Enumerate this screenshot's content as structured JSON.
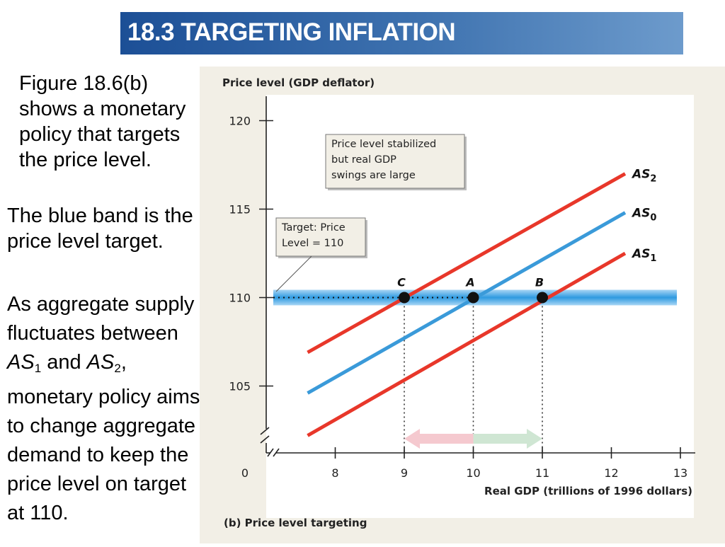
{
  "slide": {
    "title": "18.3 TARGETING INFLATION",
    "para1": "Figure 18.6(b) shows a monetary policy that targets the price level.",
    "para2": "The blue band is the price level target.",
    "para3": {
      "t1": "As aggregate supply fluctuates between ",
      "as1": "AS",
      "as1_sub": "1",
      "t2": " and ",
      "as2": "AS",
      "as2_sub": "2",
      "t3": ", monetary policy aims to change aggregate demand to keep the price level on target at 110."
    }
  },
  "chart_data": {
    "type": "line",
    "ylabel": "Price level (GDP deflator)",
    "xlabel": "Real GDP (trillions of 1996 dollars)",
    "caption": "(b) Price level targeting",
    "y_ticks": [
      105,
      110,
      115,
      120
    ],
    "x_ticks": [
      8,
      9,
      10,
      11,
      12,
      13
    ],
    "origin_label": "0",
    "xlim": [
      7,
      13
    ],
    "ylim": [
      102,
      120
    ],
    "target_price_level": 110,
    "series": [
      {
        "name": "AS",
        "sub": "2",
        "color": "#e8372a",
        "x": [
          7.6,
          12.2
        ],
        "y": [
          106.9,
          117.0
        ]
      },
      {
        "name": "AS",
        "sub": "0",
        "color": "#3a9ad9",
        "x": [
          7.6,
          12.2
        ],
        "y": [
          104.6,
          114.8
        ]
      },
      {
        "name": "AS",
        "sub": "1",
        "color": "#e8372a",
        "x": [
          7.6,
          12.2
        ],
        "y": [
          102.2,
          112.5
        ]
      }
    ],
    "points": [
      {
        "label": "C",
        "x": 9,
        "y": 110
      },
      {
        "label": "A",
        "x": 10,
        "y": 110
      },
      {
        "label": "B",
        "x": 11,
        "y": 110
      }
    ],
    "arrows": [
      {
        "from": 10,
        "to": 9,
        "color": "#f5c9cf"
      },
      {
        "from": 10,
        "to": 11,
        "color": "#cfe6d3"
      }
    ],
    "annotations": {
      "note_lines": [
        "Price level stabilized",
        "but real GDP",
        "swings are large"
      ],
      "target_lines": [
        "Target: Price",
        "Level = 110"
      ]
    }
  }
}
